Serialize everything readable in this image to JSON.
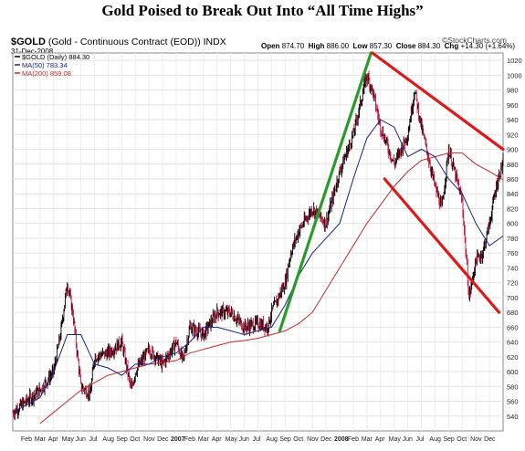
{
  "title": "Gold Poised to Break Out Into “All Time Highs”",
  "symbol": {
    "ticker": "$GOLD",
    "desc": "(Gold - Continuous Contract (EOD)) INDX"
  },
  "date": "31-Dec-2008",
  "brand": "©StockCharts.com",
  "ohlc": [
    {
      "k": "Open",
      "v": "874.70"
    },
    {
      "k": "High",
      "v": "886.00"
    },
    {
      "k": "Low",
      "v": "857.30"
    },
    {
      "k": "Close",
      "v": "884.30"
    },
    {
      "k": "Chg",
      "v": "+14.30 (+1.64%)"
    }
  ],
  "legend": [
    {
      "label": "$GOLD (Daily) 884.30",
      "color": "#000000"
    },
    {
      "label": "MA(50) 783.34",
      "color": "#1a237e"
    },
    {
      "label": "MA(200) 859.08",
      "color": "#c62828"
    }
  ],
  "colors": {
    "up": "#000000",
    "down": "#c0123a",
    "ma50": "#1a237e",
    "ma200": "#c62828",
    "green": "#2a9a2a",
    "red": "#e01818"
  },
  "chart_data": {
    "type": "line",
    "ylim": [
      520,
      1030
    ],
    "yticks": [
      540,
      560,
      580,
      600,
      620,
      640,
      660,
      680,
      700,
      720,
      740,
      760,
      780,
      800,
      820,
      840,
      860,
      880,
      900,
      920,
      940,
      960,
      980,
      1000,
      1020
    ],
    "xlim": [
      0,
      36
    ],
    "xticks": [
      {
        "x": 1,
        "label": "Feb"
      },
      {
        "x": 2,
        "label": "Mar"
      },
      {
        "x": 3,
        "label": "Apr"
      },
      {
        "x": 4,
        "label": "May"
      },
      {
        "x": 5,
        "label": "Jun"
      },
      {
        "x": 6,
        "label": "Jul"
      },
      {
        "x": 7,
        "label": "Aug"
      },
      {
        "x": 8,
        "label": "Sep"
      },
      {
        "x": 9,
        "label": "Oct"
      },
      {
        "x": 10,
        "label": "Nov"
      },
      {
        "x": 11,
        "label": "Dec"
      },
      {
        "x": 12,
        "label": "2007"
      },
      {
        "x": 13,
        "label": "Feb"
      },
      {
        "x": 14,
        "label": "Mar"
      },
      {
        "x": 15,
        "label": "Apr"
      },
      {
        "x": 16,
        "label": "May"
      },
      {
        "x": 17,
        "label": "Jun"
      },
      {
        "x": 18,
        "label": "Jul"
      },
      {
        "x": 19,
        "label": "Aug"
      },
      {
        "x": 20,
        "label": "Sep"
      },
      {
        "x": 21,
        "label": "Oct"
      },
      {
        "x": 22,
        "label": "Nov"
      },
      {
        "x": 23,
        "label": "Dec"
      },
      {
        "x": 24,
        "label": "2008"
      },
      {
        "x": 25,
        "label": "Feb"
      },
      {
        "x": 26,
        "label": "Mar"
      },
      {
        "x": 27,
        "label": "Apr"
      },
      {
        "x": 28,
        "label": "May"
      },
      {
        "x": 29,
        "label": "Jun"
      },
      {
        "x": 30,
        "label": "Jul"
      },
      {
        "x": 31,
        "label": "Aug"
      },
      {
        "x": 32,
        "label": "Sep"
      },
      {
        "x": 33,
        "label": "Oct"
      },
      {
        "x": 34,
        "label": "Nov"
      },
      {
        "x": 35,
        "label": "Dec"
      }
    ],
    "bold_ticks": [
      "2007",
      "2008"
    ],
    "grid": true,
    "legend_position": "top-left",
    "price": {
      "x": [
        0,
        1,
        2,
        3,
        3.5,
        4,
        4.4,
        5,
        5.7,
        6,
        7,
        8,
        8.7,
        9,
        10,
        11,
        12,
        12.5,
        13,
        14,
        15,
        16,
        17,
        18,
        18.7,
        19,
        20,
        20.4,
        21,
        22,
        23,
        24,
        25,
        26,
        26.4,
        27,
        28,
        29,
        29.5,
        30,
        31,
        31.5,
        32,
        33,
        33.5,
        34,
        34.5,
        35,
        35.5,
        36
      ],
      "y": [
        545,
        560,
        575,
        600,
        650,
        720,
        680,
        580,
        570,
        620,
        625,
        640,
        575,
        600,
        630,
        610,
        640,
        615,
        660,
        650,
        680,
        680,
        660,
        665,
        660,
        680,
        720,
        760,
        790,
        820,
        800,
        870,
        920,
        1000,
        980,
        930,
        880,
        920,
        980,
        930,
        850,
        820,
        900,
        830,
        700,
        750,
        760,
        800,
        850,
        884
      ]
    },
    "ma50": {
      "x": [
        0,
        1,
        2,
        3,
        4,
        5,
        6,
        7,
        8,
        9,
        10,
        11,
        12,
        13,
        14,
        15,
        16,
        17,
        18,
        19,
        20,
        21,
        22,
        23,
        24,
        25,
        26,
        27,
        28,
        29,
        30,
        31,
        32,
        33,
        34,
        35,
        36
      ],
      "y": [
        545,
        555,
        565,
        600,
        650,
        650,
        610,
        605,
        595,
        610,
        610,
        620,
        625,
        640,
        660,
        660,
        655,
        650,
        655,
        660,
        690,
        730,
        760,
        780,
        800,
        860,
        915,
        940,
        930,
        890,
        900,
        890,
        860,
        840,
        800,
        770,
        783
      ]
    },
    "ma200": {
      "x": [
        2,
        3,
        4,
        5,
        6,
        7,
        8,
        9,
        10,
        11,
        12,
        13,
        14,
        15,
        16,
        17,
        18,
        19,
        20,
        21,
        22,
        23,
        24,
        25,
        26,
        27,
        28,
        29,
        30,
        31,
        32,
        33,
        34,
        35,
        36
      ],
      "y": [
        530,
        545,
        560,
        575,
        585,
        595,
        600,
        605,
        610,
        612,
        615,
        625,
        630,
        635,
        640,
        642,
        645,
        650,
        655,
        665,
        680,
        710,
        740,
        770,
        800,
        825,
        850,
        870,
        885,
        890,
        895,
        895,
        880,
        870,
        859
      ]
    },
    "trendlines": [
      {
        "x1": 19.6,
        "y1": 655,
        "x2": 26.3,
        "y2": 1030,
        "color": "green"
      },
      {
        "x1": 26.4,
        "y1": 1030,
        "x2": 36,
        "y2": 900,
        "color": "red"
      },
      {
        "x1": 27.3,
        "y1": 860,
        "x2": 35.7,
        "y2": 680,
        "color": "red"
      }
    ]
  }
}
